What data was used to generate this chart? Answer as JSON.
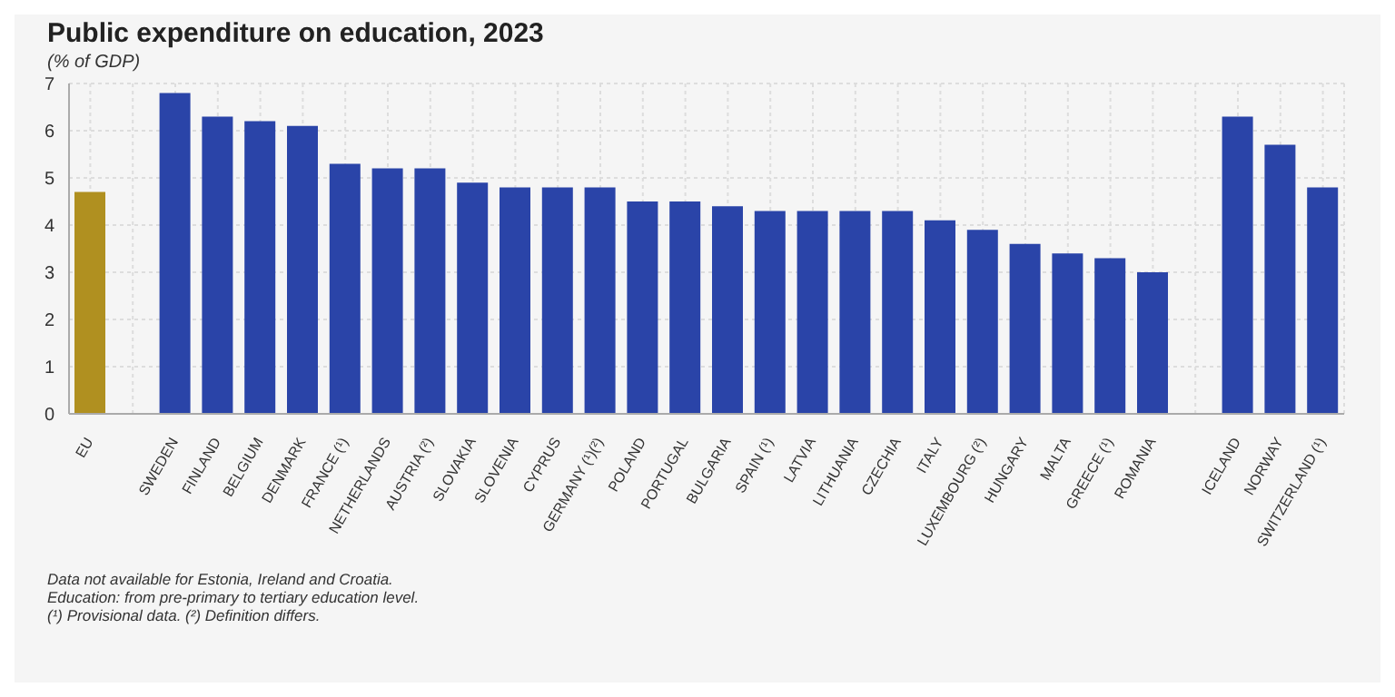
{
  "chart_data": {
    "type": "bar",
    "title": "Public expenditure on education, 2023",
    "subtitle": "(% of GDP)",
    "categories": [
      "EU",
      null,
      "SWEDEN",
      "FINLAND",
      "BELGIUM",
      "DENMARK",
      "FRANCE (¹)",
      "NETHERLANDS",
      "AUSTRIA (²)",
      "SLOVAKIA",
      "SLOVENIA",
      "CYPRUS",
      "GERMANY (¹)(²)",
      "POLAND",
      "PORTUGAL",
      "BULGARIA",
      "SPAIN (¹)",
      "LATVIA",
      "LITHUANIA",
      "CZECHIA",
      "ITALY",
      "LUXEMBOURG (²)",
      "HUNGARY",
      "MALTA",
      "GREECE (¹)",
      "ROMANIA",
      null,
      "ICELAND",
      "NORWAY",
      "SWITZERLAND (¹)"
    ],
    "values": [
      4.7,
      null,
      6.8,
      6.3,
      6.2,
      6.1,
      5.3,
      5.2,
      5.2,
      4.9,
      4.8,
      4.8,
      4.8,
      4.5,
      4.5,
      4.4,
      4.3,
      4.3,
      4.3,
      4.3,
      4.1,
      3.9,
      3.6,
      3.4,
      3.3,
      3.0,
      null,
      6.3,
      5.7,
      4.8
    ],
    "colors": [
      "#b09020",
      null,
      "#2a44a8",
      "#2a44a8",
      "#2a44a8",
      "#2a44a8",
      "#2a44a8",
      "#2a44a8",
      "#2a44a8",
      "#2a44a8",
      "#2a44a8",
      "#2a44a8",
      "#2a44a8",
      "#2a44a8",
      "#2a44a8",
      "#2a44a8",
      "#2a44a8",
      "#2a44a8",
      "#2a44a8",
      "#2a44a8",
      "#2a44a8",
      "#2a44a8",
      "#2a44a8",
      "#2a44a8",
      "#2a44a8",
      "#2a44a8",
      null,
      "#2a44a8",
      "#2a44a8",
      "#2a44a8"
    ],
    "ylim": [
      0,
      7
    ],
    "yticks": [
      0,
      1,
      2,
      3,
      4,
      5,
      6,
      7
    ],
    "grid": true,
    "annotations": [
      "Data not available for Estonia, Ireland and Croatia.",
      "Education: from pre-primary to tertiary education level.",
      "(¹) Provisional data. (²) Definition differs."
    ]
  }
}
